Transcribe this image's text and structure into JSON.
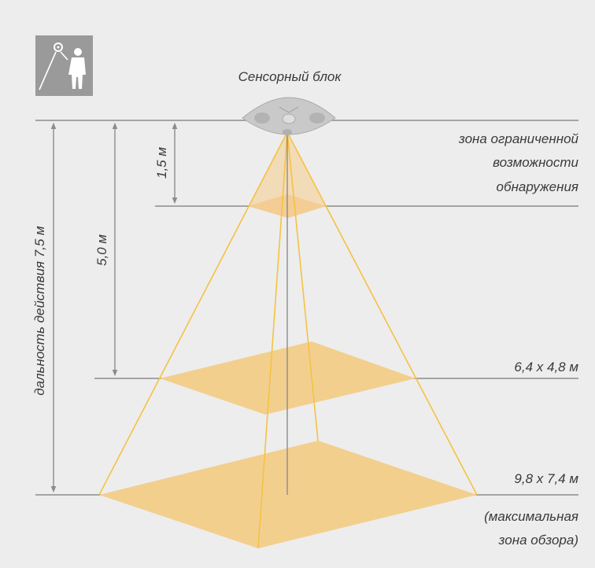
{
  "sensor_label": "Сенсорный блок",
  "range_label": "дальность действия 7,5 м",
  "dim_5m": "5,0 м",
  "dim_15m": "1,5 м",
  "limited_zone": [
    "зона ограниченной",
    "возможности",
    "обнаружения"
  ],
  "area_mid": "6,4 х 4,8 м",
  "area_max": "9,8 х 7,4 м",
  "max_zone": [
    "(максимальная",
    "зона обзора)"
  ],
  "colors": {
    "background": "#ededed",
    "beam": "#f5c242",
    "zone_fill": "#f3cf8e",
    "guide": "#8c8c8c",
    "icon_bg": "#9a9a9a"
  }
}
